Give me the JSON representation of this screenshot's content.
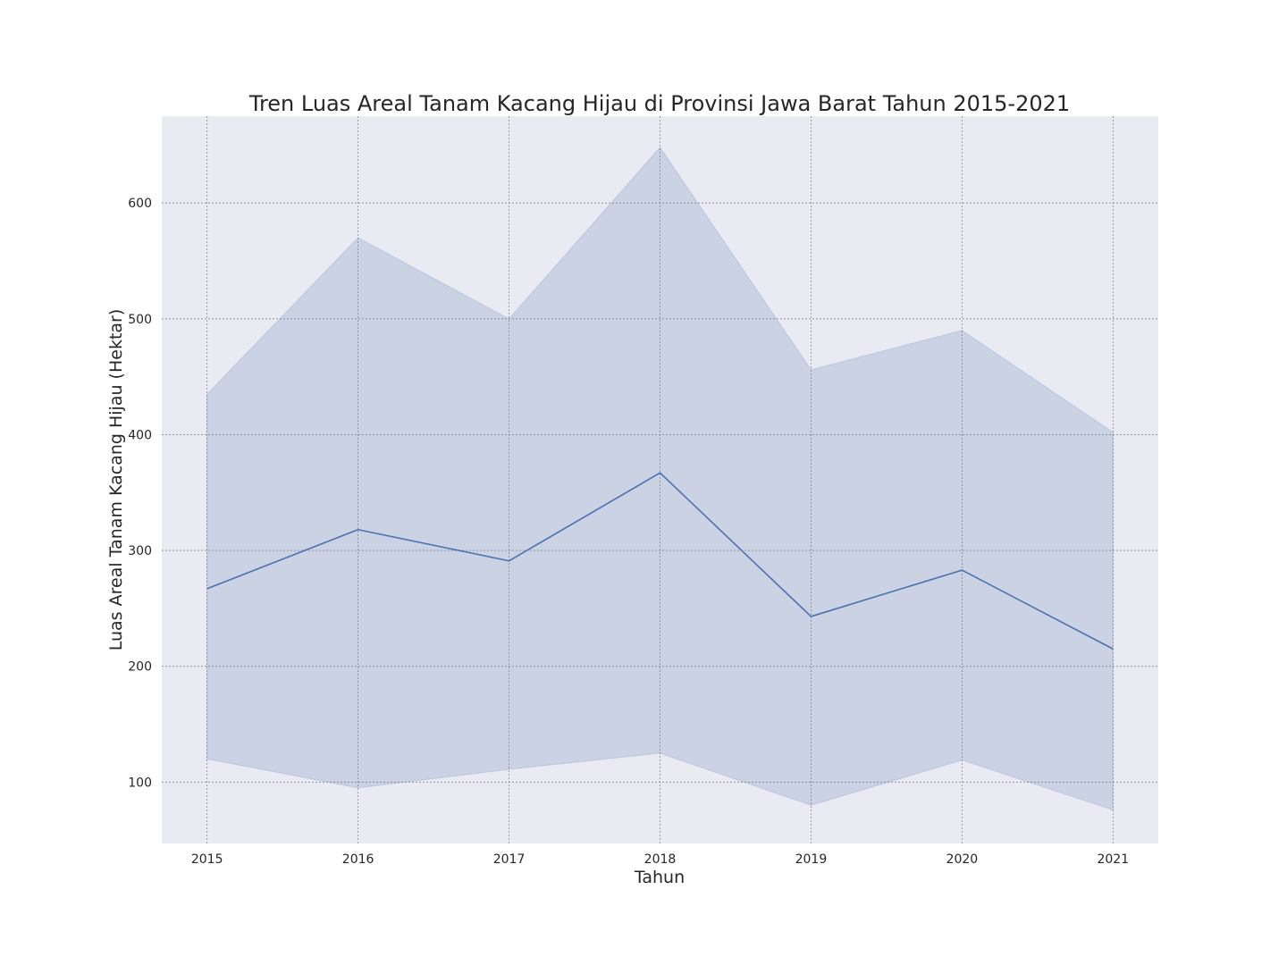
{
  "colors": {
    "figure_background": "#ffffff",
    "plot_background": "#eaeaf2",
    "line": "#4c72b0",
    "band": "#4c72b0",
    "grid": "#8a8a8a",
    "text": "#262626"
  },
  "chart_data": {
    "type": "line",
    "title": "Tren Luas Areal Tanam Kacang Hijau di Provinsi Jawa Barat Tahun 2015-2021",
    "xlabel": "Tahun",
    "ylabel": "Luas Areal Tanam Kacang Hijau (Hektar)",
    "x": [
      2015,
      2016,
      2017,
      2018,
      2019,
      2020,
      2021
    ],
    "xlim": [
      2014.7,
      2021.3
    ],
    "ylim": [
      47,
      675
    ],
    "yticks": [
      100,
      200,
      300,
      400,
      500,
      600
    ],
    "grid": true,
    "legend": "none",
    "series": [
      {
        "values": [
          267,
          318,
          291,
          367,
          243,
          283,
          215
        ],
        "band_lower": [
          120,
          95,
          111,
          125,
          80,
          119,
          76
        ],
        "band_upper": [
          435,
          570,
          500,
          648,
          456,
          490,
          402
        ]
      }
    ]
  }
}
